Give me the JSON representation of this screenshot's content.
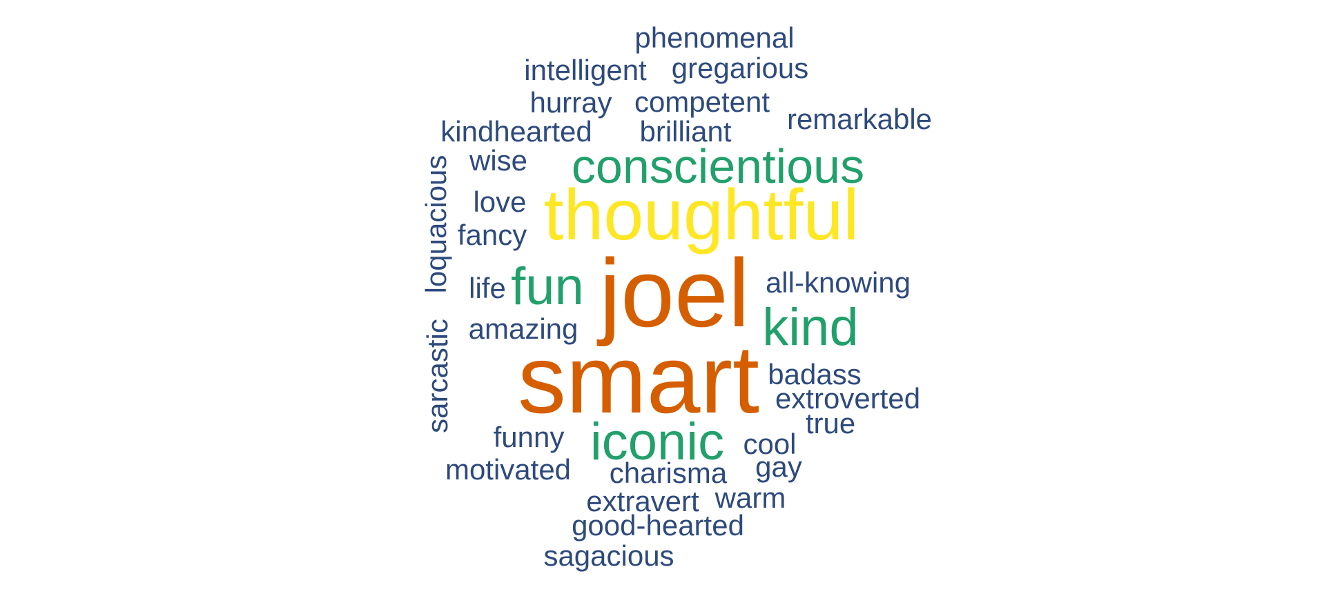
{
  "palette": {
    "blue": "#2E4A7D",
    "green": "#22A06B",
    "yellow": "#FDE725",
    "orange": "#D55E00"
  },
  "words": [
    {
      "key": "phenomenal",
      "text": "phenomenal",
      "color": "blue"
    },
    {
      "key": "intelligent",
      "text": "intelligent",
      "color": "blue"
    },
    {
      "key": "gregarious",
      "text": "gregarious",
      "color": "blue"
    },
    {
      "key": "hurray",
      "text": "hurray",
      "color": "blue"
    },
    {
      "key": "competent",
      "text": "competent",
      "color": "blue"
    },
    {
      "key": "remarkable",
      "text": "remarkable",
      "color": "blue"
    },
    {
      "key": "kindhearted",
      "text": "kindhearted",
      "color": "blue"
    },
    {
      "key": "brilliant",
      "text": "brilliant",
      "color": "blue"
    },
    {
      "key": "wise",
      "text": "wise",
      "color": "blue"
    },
    {
      "key": "conscientious",
      "text": "conscientious",
      "color": "green"
    },
    {
      "key": "loquacious",
      "text": "loquacious",
      "color": "blue"
    },
    {
      "key": "love",
      "text": "love",
      "color": "blue"
    },
    {
      "key": "thoughtful",
      "text": "thoughtful",
      "color": "yellow"
    },
    {
      "key": "fancy",
      "text": "fancy",
      "color": "blue"
    },
    {
      "key": "life",
      "text": "life",
      "color": "blue"
    },
    {
      "key": "fun",
      "text": "fun",
      "color": "green"
    },
    {
      "key": "joel",
      "text": "joel",
      "color": "orange"
    },
    {
      "key": "all-knowing",
      "text": "all-knowing",
      "color": "blue"
    },
    {
      "key": "kind",
      "text": "kind",
      "color": "green"
    },
    {
      "key": "amazing",
      "text": "amazing",
      "color": "blue"
    },
    {
      "key": "sarcastic",
      "text": "sarcastic",
      "color": "blue"
    },
    {
      "key": "smart",
      "text": "smart",
      "color": "orange"
    },
    {
      "key": "badass",
      "text": "badass",
      "color": "blue"
    },
    {
      "key": "extroverted",
      "text": "extroverted",
      "color": "blue"
    },
    {
      "key": "true",
      "text": "true",
      "color": "blue"
    },
    {
      "key": "funny",
      "text": "funny",
      "color": "blue"
    },
    {
      "key": "iconic",
      "text": "iconic",
      "color": "green"
    },
    {
      "key": "cool",
      "text": "cool",
      "color": "blue"
    },
    {
      "key": "motivated",
      "text": "motivated",
      "color": "blue"
    },
    {
      "key": "charisma",
      "text": "charisma",
      "color": "blue"
    },
    {
      "key": "gay",
      "text": "gay",
      "color": "blue"
    },
    {
      "key": "extravert",
      "text": "extravert",
      "color": "blue"
    },
    {
      "key": "warm",
      "text": "warm",
      "color": "blue"
    },
    {
      "key": "good-hearted",
      "text": "good-hearted",
      "color": "blue"
    },
    {
      "key": "sagacious",
      "text": "sagacious",
      "color": "blue"
    }
  ]
}
